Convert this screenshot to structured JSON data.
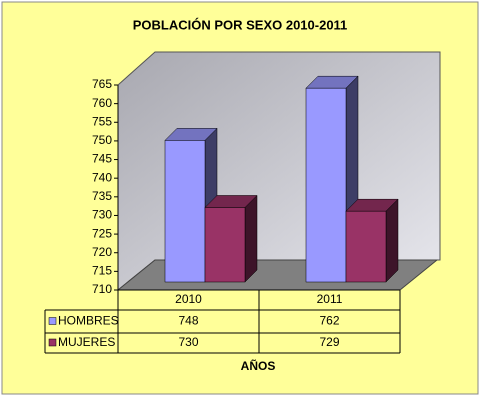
{
  "chart_data": {
    "type": "bar3d",
    "title": "POBLACIÓN POR SEXO 2010-2011",
    "x_label": "AÑOS",
    "categories": [
      "2010",
      "2011"
    ],
    "series": [
      {
        "name": "HOMBRES",
        "color": "#9999ff",
        "values": [
          748,
          762
        ]
      },
      {
        "name": "MUJERES",
        "color": "#993366",
        "values": [
          730,
          729
        ]
      }
    ],
    "ylim": [
      710,
      765
    ],
    "yticks": [
      710,
      715,
      720,
      725,
      730,
      735,
      740,
      745,
      750,
      755,
      760,
      765
    ]
  }
}
